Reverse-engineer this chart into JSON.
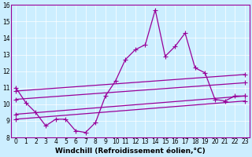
{
  "xlabel": "Windchill (Refroidissement éolien,°C)",
  "background_color": "#cceeff",
  "line_color": "#990099",
  "xlim": [
    -0.5,
    23.5
  ],
  "ylim": [
    8,
    16
  ],
  "yticks": [
    8,
    9,
    10,
    11,
    12,
    13,
    14,
    15,
    16
  ],
  "xticks": [
    0,
    1,
    2,
    3,
    4,
    5,
    6,
    7,
    8,
    9,
    10,
    11,
    12,
    13,
    14,
    15,
    16,
    17,
    18,
    19,
    20,
    21,
    22,
    23
  ],
  "series": {
    "main": {
      "x": [
        0,
        1,
        2,
        3,
        4,
        5,
        6,
        7,
        8,
        9,
        10,
        11,
        12,
        13,
        14,
        15,
        16,
        17,
        18,
        19,
        20,
        21,
        22,
        23
      ],
      "y": [
        11.0,
        10.1,
        9.5,
        8.7,
        9.1,
        9.1,
        8.4,
        8.3,
        8.9,
        10.5,
        11.4,
        12.7,
        13.3,
        13.6,
        15.7,
        12.9,
        13.5,
        14.3,
        12.2,
        11.9,
        10.3,
        10.2,
        10.5,
        10.5
      ]
    },
    "line1": {
      "x": [
        0,
        23
      ],
      "y": [
        10.8,
        11.8
      ]
    },
    "line2": {
      "x": [
        0,
        23
      ],
      "y": [
        10.3,
        11.3
      ]
    },
    "line3": {
      "x": [
        0,
        23
      ],
      "y": [
        9.4,
        10.5
      ]
    },
    "line4": {
      "x": [
        0,
        23
      ],
      "y": [
        9.1,
        10.2
      ]
    }
  },
  "marker": "+",
  "markersize": 4,
  "linewidth": 0.9,
  "xlabel_fontsize": 6.5,
  "tick_fontsize": 5.5
}
